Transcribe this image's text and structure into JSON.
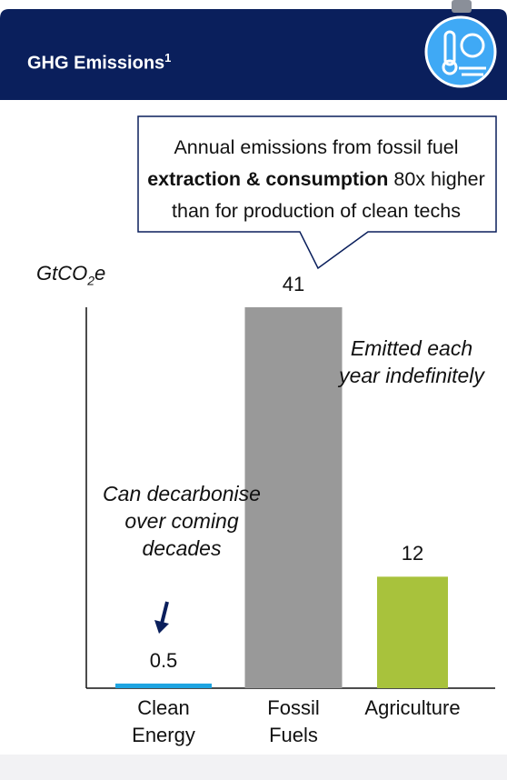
{
  "header": {
    "title": "GHG Emissions",
    "footnote": "1"
  },
  "callout": [
    {
      "text": "Annual emissions from fossil fuel ",
      "bold": false
    },
    {
      "text": "extraction & consumption",
      "bold": true
    },
    {
      "text": " 80x higher than for production of clean techs",
      "bold": false
    }
  ],
  "chart_data": {
    "type": "bar",
    "y_label": [
      "GtCO",
      "2",
      "e"
    ],
    "categories": [
      "Clean Energy",
      "Fossil Fuels",
      "Agriculture"
    ],
    "values": [
      0.5,
      41,
      12
    ],
    "colors": [
      "#1ea4e1",
      "#999999",
      "#a8c23c"
    ],
    "ylim": [
      0,
      41
    ],
    "annotations": [
      "Can decarbonise over coming decades",
      "Emitted each year indefinitely"
    ]
  }
}
